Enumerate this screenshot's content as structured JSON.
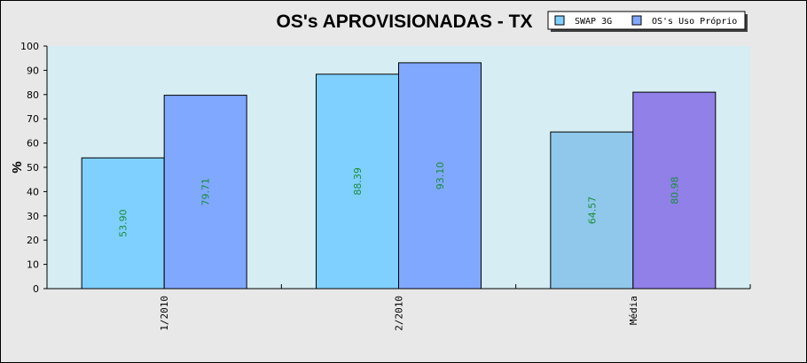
{
  "chart_data": {
    "type": "bar",
    "title": "OS's APROVISIONADAS - TX",
    "xlabel": "",
    "ylabel": "%",
    "ylim": [
      0,
      100
    ],
    "yticks": [
      0,
      10,
      20,
      30,
      40,
      50,
      60,
      70,
      80,
      90,
      100
    ],
    "categories": [
      "1/2010",
      "2/2010",
      "Média"
    ],
    "series": [
      {
        "name": "SWAP 3G",
        "values": [
          53.9,
          88.39,
          64.57
        ],
        "value_labels": [
          "53.90",
          "88.39",
          "64.57"
        ],
        "color": "#80d0ff",
        "last_color": "#90c8ec"
      },
      {
        "name": "OS's Uso Próprio",
        "values": [
          79.71,
          93.1,
          80.98
        ],
        "value_labels": [
          "79.71",
          "93.10",
          "80.98"
        ],
        "color": "#80a8ff",
        "last_color": "#9080e8"
      }
    ],
    "legend_position": "top-right",
    "grid": false,
    "plot_background": "#d5edf3",
    "label_color": "#1a8c3a"
  }
}
